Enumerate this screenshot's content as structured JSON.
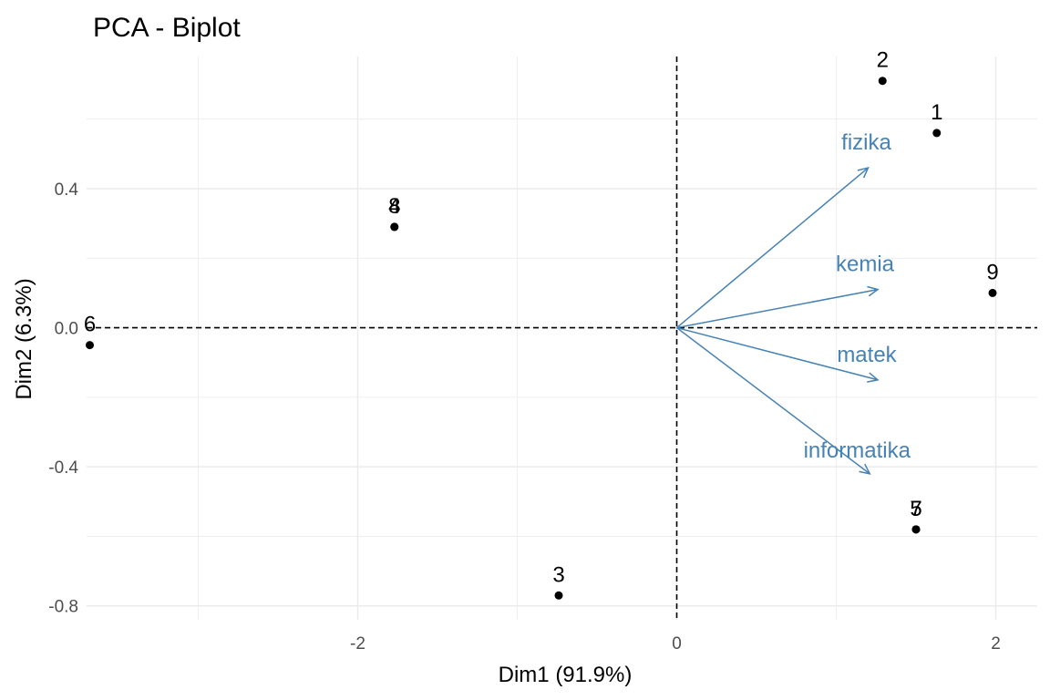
{
  "chart_data": {
    "type": "scatter",
    "title": "PCA - Biplot",
    "xlabel": "Dim1 (91.9%)",
    "ylabel": "Dim2 (6.3%)",
    "xlim": [
      -3.7,
      2.26
    ],
    "ylim": [
      -0.84,
      0.78
    ],
    "x_ticks": [
      -2,
      0,
      2
    ],
    "x_tick_labels": [
      "-2",
      "0",
      "2"
    ],
    "y_ticks": [
      -0.8,
      -0.4,
      0.0,
      0.4
    ],
    "y_tick_labels": [
      "-0.8",
      "-0.4",
      "0.0",
      "0.4"
    ],
    "grid": true,
    "reference_lines": {
      "x": 0,
      "y": 0,
      "style": "dashed"
    },
    "points": [
      {
        "label": "1",
        "x": 1.63,
        "y": 0.56
      },
      {
        "label": "2",
        "x": 1.29,
        "y": 0.71
      },
      {
        "label": "3",
        "x": -0.74,
        "y": -0.77
      },
      {
        "label": "4",
        "x": -1.77,
        "y": 0.29
      },
      {
        "label": "5",
        "x": 1.5,
        "y": -0.58
      },
      {
        "label": "6",
        "x": -3.68,
        "y": -0.05
      },
      {
        "label": "7",
        "x": 1.5,
        "y": -0.58
      },
      {
        "label": "8",
        "x": -1.77,
        "y": 0.29
      },
      {
        "label": "9",
        "x": 1.98,
        "y": 0.1
      }
    ],
    "variables": [
      {
        "label": "fizika",
        "x": 1.2,
        "y": 0.46
      },
      {
        "label": "kemia",
        "x": 1.26,
        "y": 0.11
      },
      {
        "label": "matek",
        "x": 1.26,
        "y": -0.15
      },
      {
        "label": "informatika",
        "x": 1.21,
        "y": -0.42
      }
    ],
    "point_color": "#000000",
    "variable_color": "#4682b4",
    "grid_color": "#ebebeb"
  }
}
